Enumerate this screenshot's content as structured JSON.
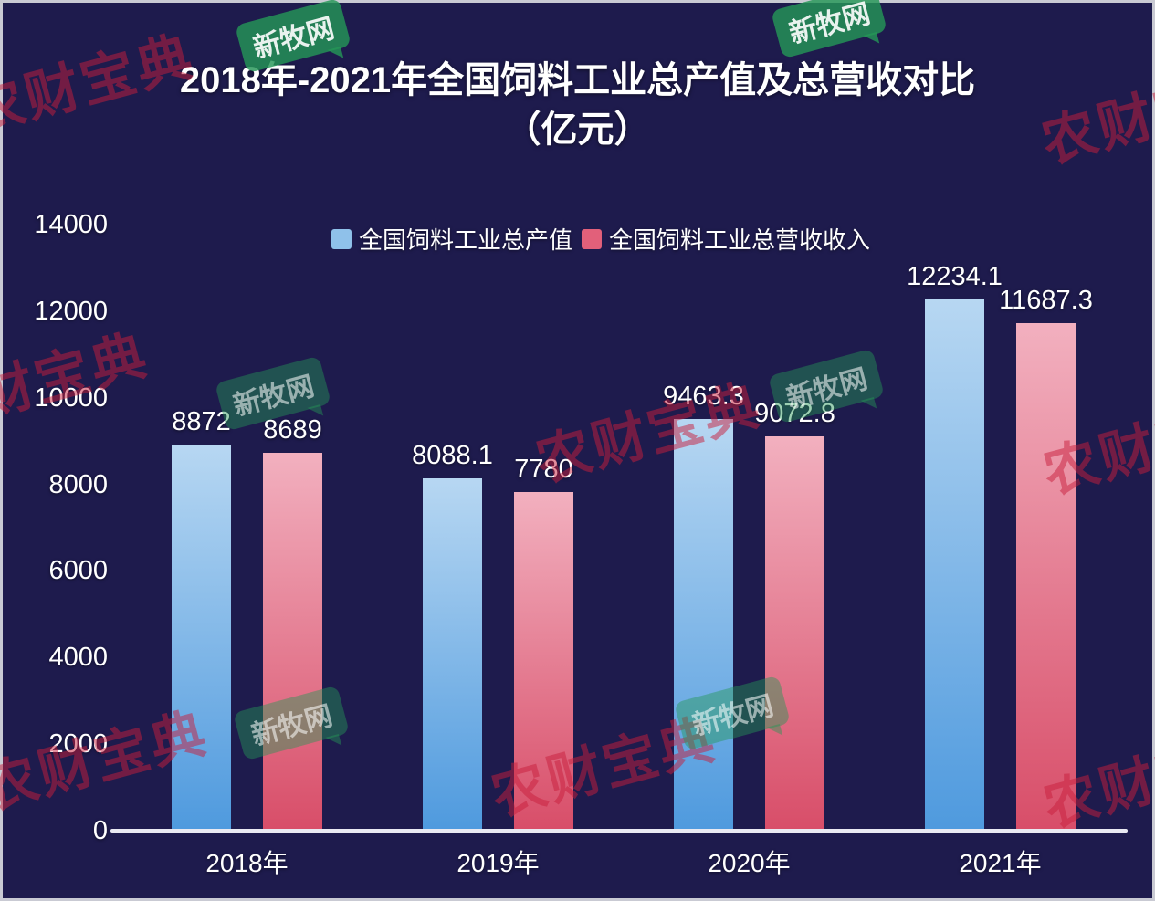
{
  "page": {
    "title_line1": "2018年-2021年全国饲料工业总产值及总营收对比",
    "title_line2": "（亿元）"
  },
  "watermarks": {
    "brand_text": "农财宝典",
    "logo_text": "新牧网"
  },
  "chart_data": {
    "type": "bar",
    "title": "2018年-2021年全国饲料工业总产值及总营收对比（亿元）",
    "categories": [
      "2018年",
      "2019年",
      "2020年",
      "2021年"
    ],
    "series": [
      {
        "name": "全国饲料工业总产值",
        "legend_color": "#8fc1ea",
        "color_top": "#b7d7f2",
        "color_bottom": "#4f9ade",
        "values": [
          8872,
          8088.1,
          9463.3,
          12234.1
        ]
      },
      {
        "name": "全国饲料工业总营收收入",
        "legend_color": "#e2607a",
        "color_top": "#f2b0bf",
        "color_bottom": "#d84e69",
        "values": [
          8689,
          7780,
          9072.8,
          11687.3
        ]
      }
    ],
    "xlabel": "",
    "ylabel": "",
    "ylim": [
      0,
      14000
    ],
    "yticks": [
      0,
      2000,
      4000,
      6000,
      8000,
      10000,
      12000,
      14000
    ],
    "grid": false,
    "legend_position": "top-center",
    "background_color": "#1e1b4d"
  }
}
